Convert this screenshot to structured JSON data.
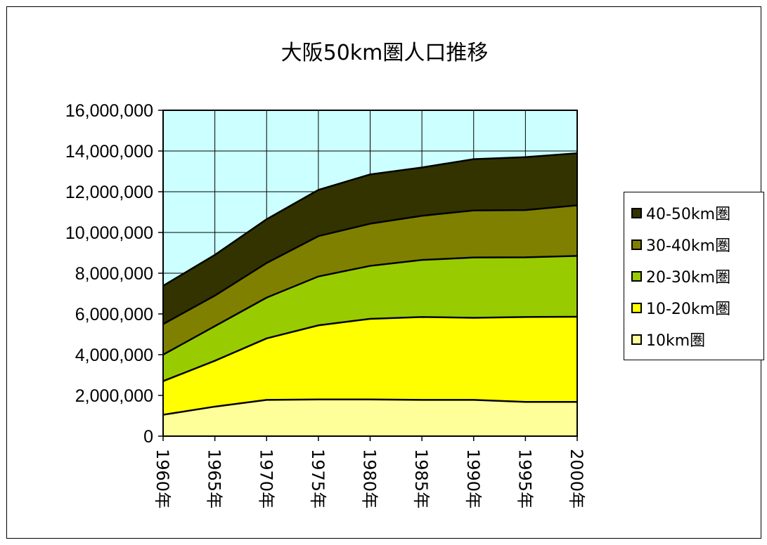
{
  "chart_data": {
    "type": "area",
    "stacked": true,
    "title": "大阪50km圏人口推移",
    "categories": [
      "1960年",
      "1965年",
      "1970年",
      "1975年",
      "1980年",
      "1985年",
      "1990年",
      "1995年",
      "2000年"
    ],
    "ylim": [
      0,
      16000000
    ],
    "yticks": [
      0,
      2000000,
      4000000,
      6000000,
      8000000,
      10000000,
      12000000,
      14000000,
      16000000
    ],
    "ytick_labels": [
      "0",
      "2,000,000",
      "4,000,000",
      "6,000,000",
      "8,000,000",
      "10,000,000",
      "12,000,000",
      "14,000,000",
      "16,000,000"
    ],
    "grid": true,
    "legend_position": "right",
    "plot_background": "#ccffff",
    "series": [
      {
        "name": "10km圏",
        "color": "#ffff99",
        "values": [
          1050000,
          1450000,
          1780000,
          1800000,
          1800000,
          1780000,
          1780000,
          1680000,
          1680000
        ]
      },
      {
        "name": "10-20km圏",
        "color": "#ffff00",
        "values": [
          1650000,
          2250000,
          3020000,
          3640000,
          3960000,
          4070000,
          4030000,
          4170000,
          4180000
        ]
      },
      {
        "name": "20-30km圏",
        "color": "#99cc00",
        "values": [
          1300000,
          1700000,
          2000000,
          2400000,
          2600000,
          2800000,
          2960000,
          2930000,
          2990000
        ]
      },
      {
        "name": "30-40km圏",
        "color": "#808000",
        "values": [
          1500000,
          1500000,
          1700000,
          1980000,
          2070000,
          2170000,
          2310000,
          2320000,
          2480000
        ]
      },
      {
        "name": "40-50km圏",
        "color": "#333300",
        "values": [
          1880000,
          2000000,
          2150000,
          2270000,
          2420000,
          2370000,
          2520000,
          2600000,
          2560000
        ]
      }
    ]
  }
}
